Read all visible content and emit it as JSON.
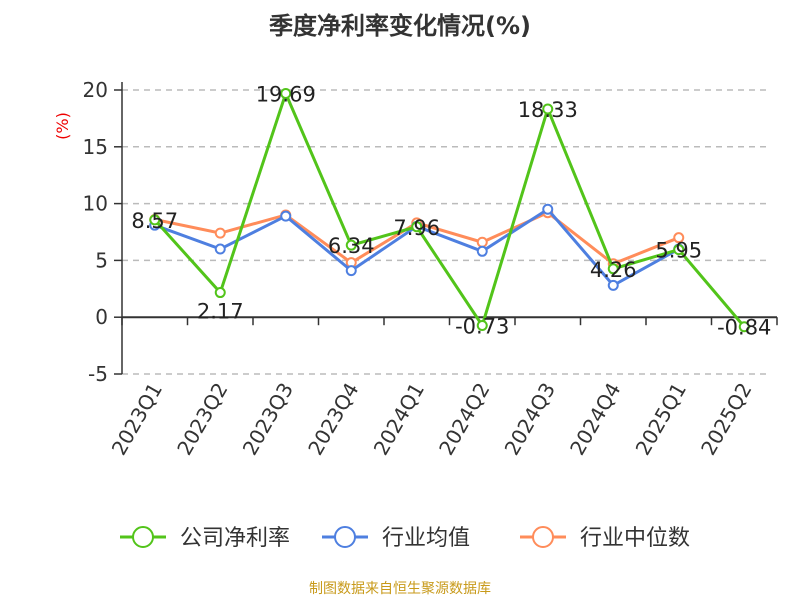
{
  "chart_data": {
    "type": "line",
    "title": "季度净利率变化情况(%)",
    "ylabel": "(%)",
    "xlabel": "",
    "categories": [
      "2023Q1",
      "2023Q2",
      "2023Q3",
      "2023Q4",
      "2024Q1",
      "2024Q2",
      "2024Q3",
      "2024Q4",
      "2025Q1",
      "2025Q2"
    ],
    "ylim": [
      -5,
      20
    ],
    "yticks": [
      -5,
      0,
      5,
      10,
      15,
      20
    ],
    "grid": true,
    "legend_position": "bottom",
    "series": [
      {
        "name": "公司净利率",
        "color": "#52c41a",
        "values": [
          8.57,
          2.17,
          19.69,
          6.34,
          7.96,
          -0.73,
          18.33,
          4.26,
          5.95,
          -0.84
        ],
        "labels": [
          "8.57",
          "2.17",
          "19.69",
          "6.34",
          "7.96",
          "-0.73",
          "18.33",
          "4.26",
          "5.95",
          "-0.84"
        ]
      },
      {
        "name": "行业均值",
        "color": "#4e7fe0",
        "values": [
          8.1,
          6.0,
          8.9,
          4.1,
          8.0,
          5.8,
          9.5,
          2.8,
          6.0,
          null
        ]
      },
      {
        "name": "行业中位数",
        "color": "#ff8c5a",
        "values": [
          8.6,
          7.4,
          9.0,
          4.8,
          8.3,
          6.6,
          9.2,
          4.7,
          7.0,
          null
        ]
      }
    ]
  },
  "source": "制图数据来自恒生聚源数据库"
}
